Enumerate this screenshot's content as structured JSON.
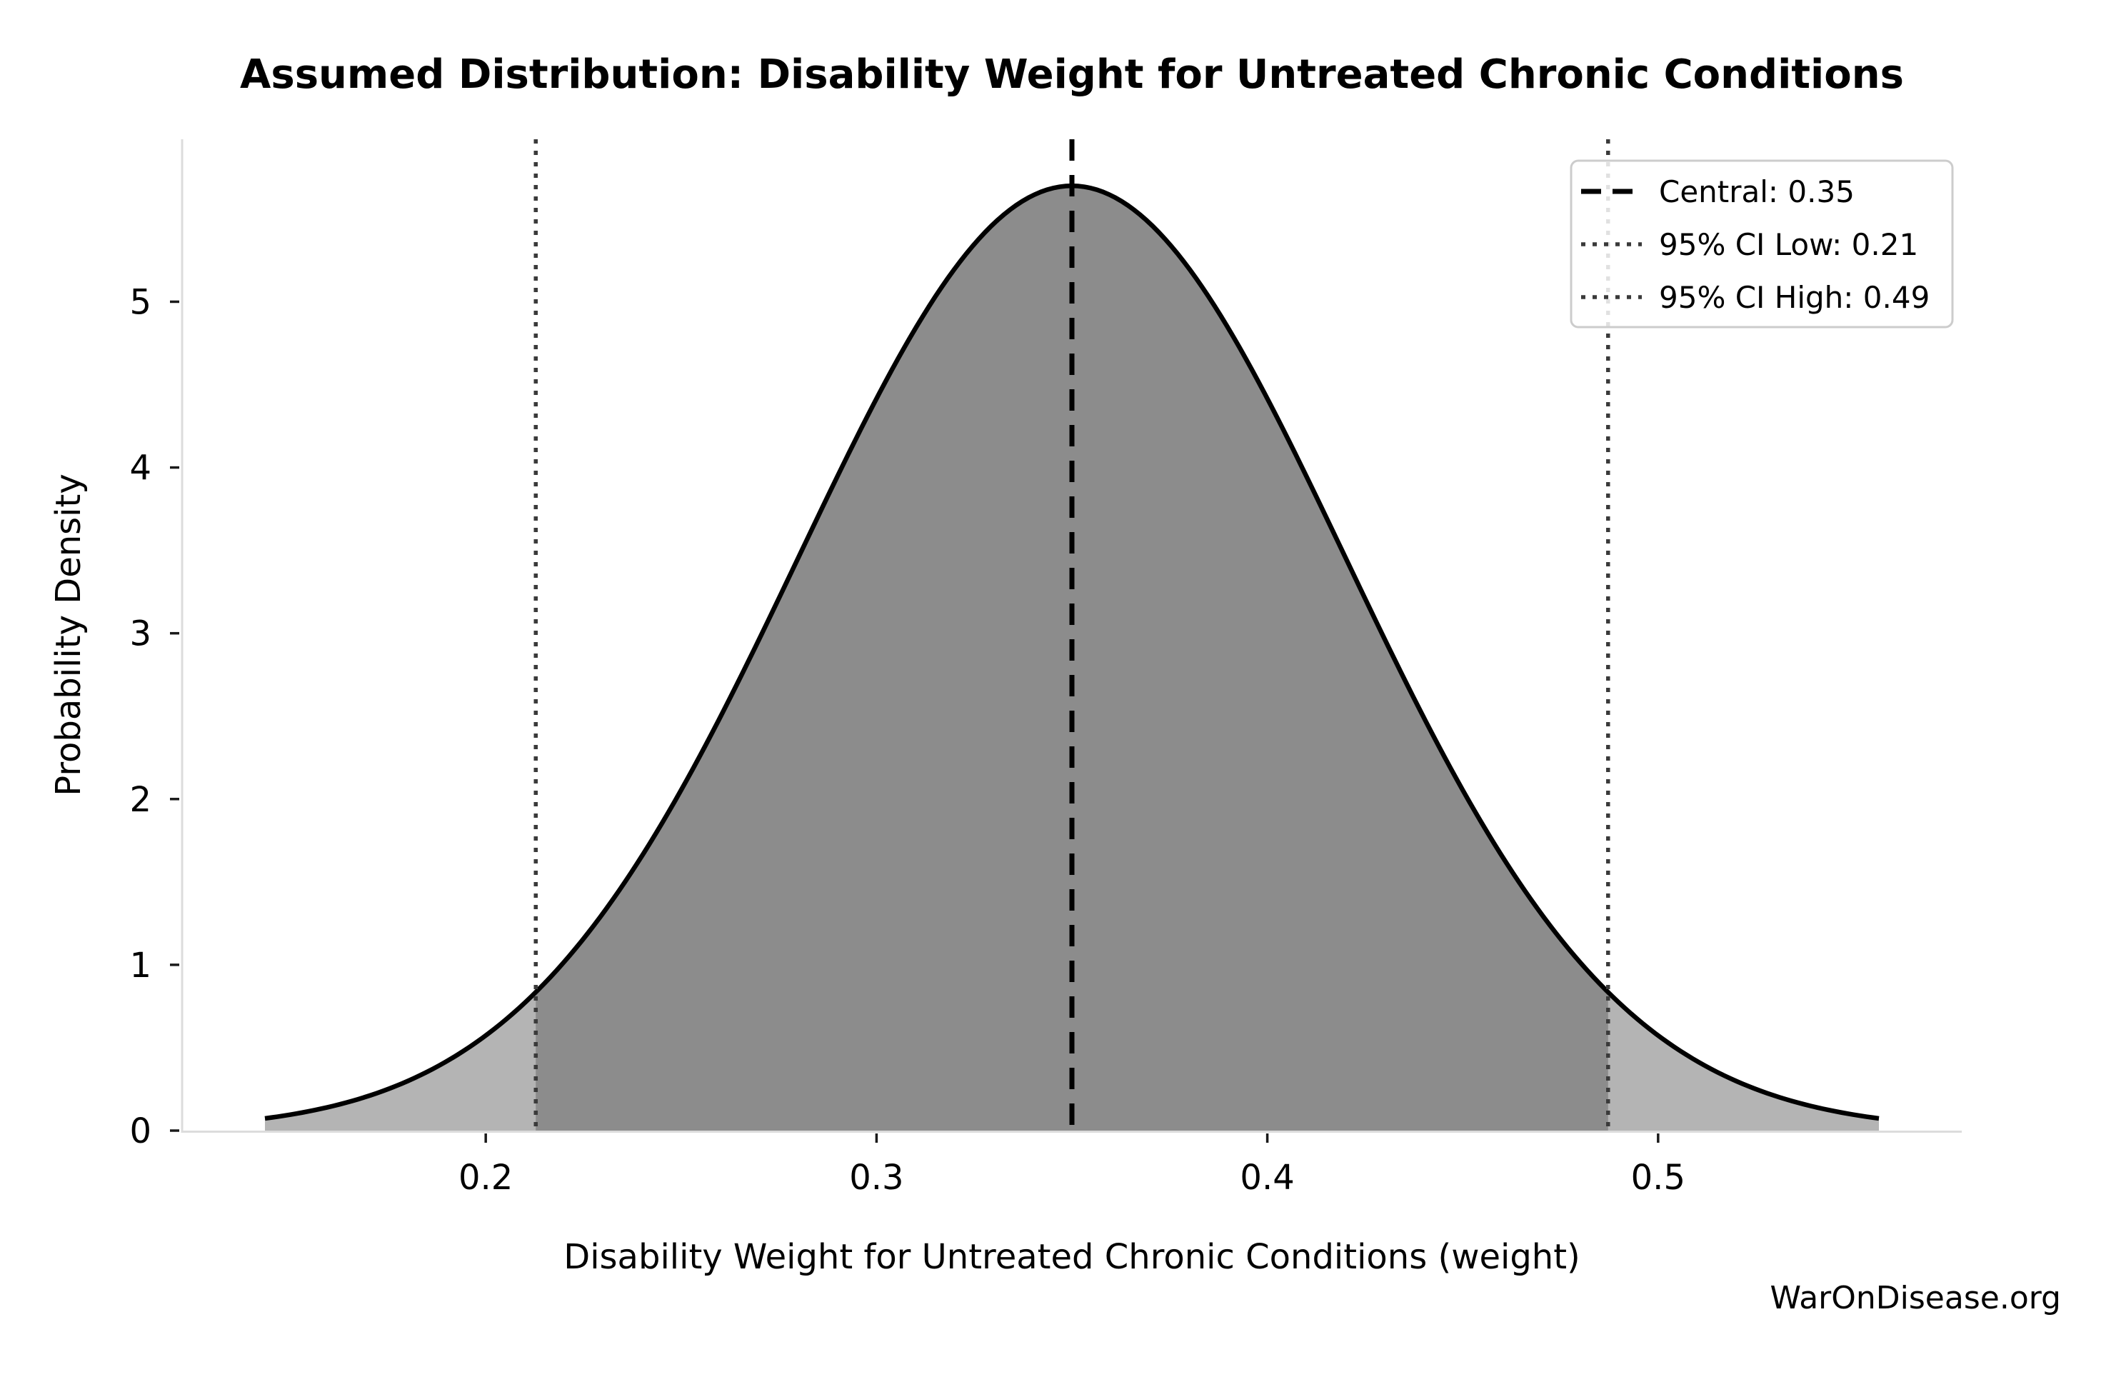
{
  "watermark": "WarOnDisease.org",
  "chart_data": {
    "type": "area",
    "title": "Assumed Distribution: Disability Weight for Untreated Chronic Conditions",
    "xlabel": "Disability Weight for Untreated Chronic Conditions (weight)",
    "ylabel": "Probability Density",
    "distribution": {
      "kind": "normal",
      "mean": 0.35,
      "sigma": 0.07,
      "curve_halfwidth_sigmas": 2.95,
      "peak_density": 5.7
    },
    "central_value": 0.35,
    "ci": {
      "level": "95%",
      "low": 0.21,
      "high": 0.49,
      "z": 1.96
    },
    "x_ticks": [
      0.2,
      0.3,
      0.4,
      0.5
    ],
    "x_tick_labels": [
      "0.2",
      "0.3",
      "0.4",
      "0.5"
    ],
    "y_ticks": [
      0,
      1,
      2,
      3,
      4,
      5
    ],
    "y_tick_labels": [
      "0",
      "1",
      "2",
      "3",
      "4",
      "5"
    ],
    "xlim": [
      0.1223,
      0.5777
    ],
    "ylim": [
      0,
      5.98
    ],
    "grid": false,
    "legend_position": "upper right",
    "legend_entries": [
      {
        "label": "Central: 0.35",
        "style": "dashed",
        "color": "#000000"
      },
      {
        "label": "95% CI Low: 0.21",
        "style": "dotted",
        "color": "#3a3a3a"
      },
      {
        "label": "95% CI High: 0.49",
        "style": "dotted",
        "color": "#3a3a3a"
      }
    ],
    "colors": {
      "curve": "#000000",
      "fill_tail": "#b4b4b4",
      "fill_ci": "#8c8c8c",
      "central_line": "#000000",
      "ci_line": "#3a3a3a",
      "spine": "#dcdcdc",
      "tick": "#1a1a1a",
      "text": "#000000",
      "watermark": "#404040",
      "legend_bg": "#ffffff",
      "legend_border": "#cccccc"
    }
  }
}
